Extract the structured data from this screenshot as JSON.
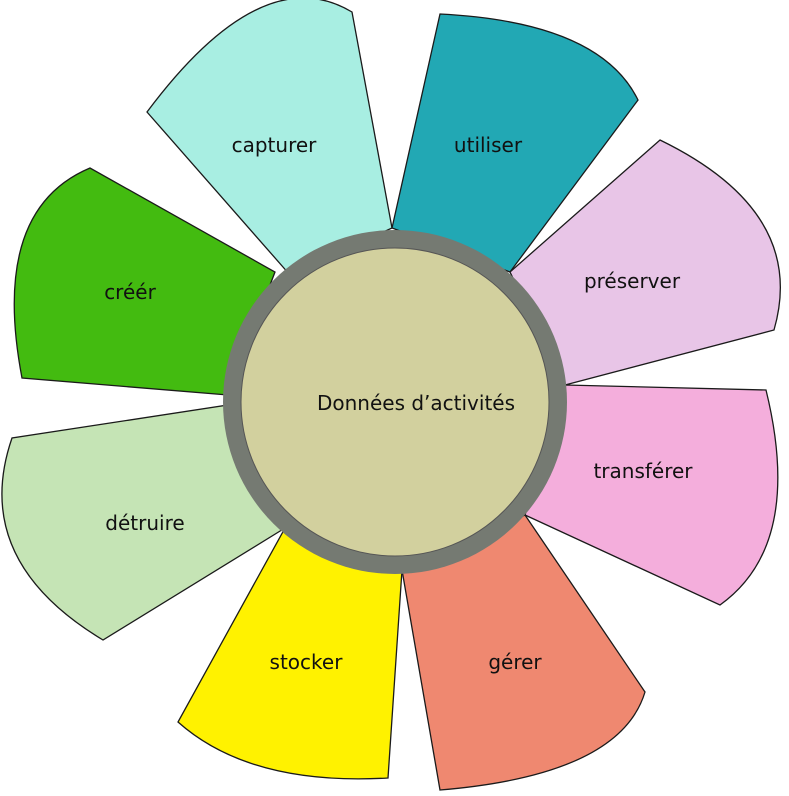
{
  "center": {
    "label": "Données d’activités",
    "fill": "#d2d09e",
    "ring": "#757a72"
  },
  "petals": [
    {
      "label": "capturer",
      "color": "#a8eee2"
    },
    {
      "label": "utiliser",
      "color": "#22a8b4"
    },
    {
      "label": "préserver",
      "color": "#e8c5e7"
    },
    {
      "label": "transférer",
      "color": "#f4aedc"
    },
    {
      "label": "gérer",
      "color": "#ef8870"
    },
    {
      "label": "stocker",
      "color": "#fff200"
    },
    {
      "label": "détruire",
      "color": "#c5e4b5"
    },
    {
      "label": "créér",
      "color": "#43bb10"
    }
  ]
}
